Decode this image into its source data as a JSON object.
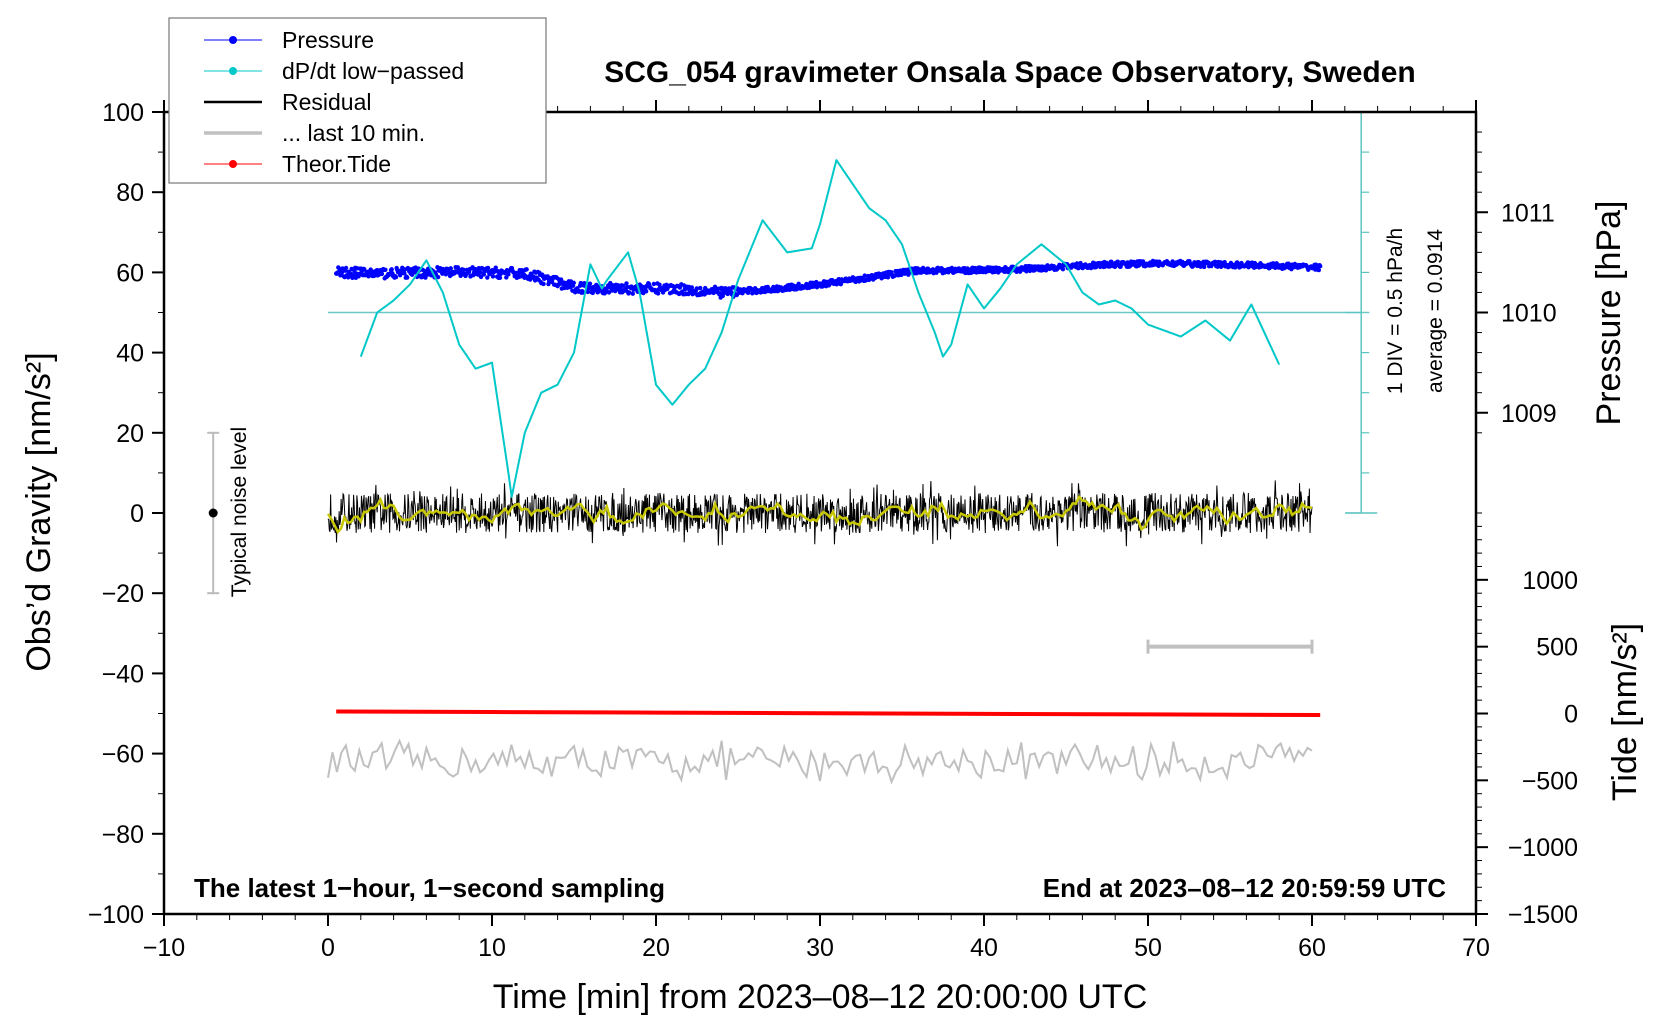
{
  "chart_data": {
    "type": "line",
    "title": "SCG_054 gravimeter Onsala Space Observatory, Sweden",
    "xlabel": "Time [min] from 2023–08–12 20:00:00 UTC",
    "ylabel": "Obs’d Gravity [nm/s²]",
    "ylabel_right_pressure": "Pressure [hPa]",
    "ylabel_right_tide": "Tide [nm/s²]",
    "xlim": [
      -10,
      70
    ],
    "ylim": [
      -100,
      100
    ],
    "xticks": [
      "−10",
      "0",
      "10",
      "20",
      "30",
      "40",
      "50",
      "60",
      "70"
    ],
    "yticks": [
      "−100",
      "−80",
      "−60",
      "−40",
      "−20",
      "0",
      "20",
      "40",
      "60",
      "80",
      "100"
    ],
    "pressure_ticks": [
      "1009",
      "1010",
      "1011"
    ],
    "tide_ticks": [
      "−1500",
      "−1000",
      "−500",
      "0",
      "500",
      "1000"
    ],
    "legend": {
      "placement": "top-left",
      "entries": [
        {
          "label": "Pressure",
          "color": "#0000ff",
          "marker": "dot"
        },
        {
          "label": "dP/dt low−passed",
          "color": "#00c8c8",
          "marker": "dot"
        },
        {
          "label": "Residual",
          "color": "#000000",
          "marker": "line"
        },
        {
          "label": "... last 10 min.",
          "color": "#c0c0c0",
          "marker": "line"
        },
        {
          "label": "Theor.Tide",
          "color": "#ff0000",
          "marker": "dot"
        }
      ]
    },
    "annotations": {
      "bottom_left": "The latest 1−hour, 1−second sampling",
      "bottom_right": "End at 2023–08–12 20:59:59 UTC",
      "dpdt_scale": "1 DIV = 0.5 hPa/h",
      "dpdt_average": "average = 0.0914",
      "noise_label": "Typical noise level"
    },
    "noise_level": {
      "x": -7,
      "center": 0,
      "range": [
        -20,
        20
      ]
    },
    "last10_scale_bar": {
      "x": [
        50,
        60
      ],
      "tide": 500
    },
    "series": [
      {
        "name": "Pressure",
        "unit": "hPa",
        "color": "#0000ff",
        "x": [
          0.5,
          3,
          6,
          9,
          12,
          15,
          18,
          21,
          24,
          27,
          30,
          33,
          36,
          39,
          42,
          45,
          48,
          51,
          54,
          57,
          60.5
        ],
        "y": [
          1010.4,
          1010.39,
          1010.4,
          1010.4,
          1010.39,
          1010.25,
          1010.24,
          1010.24,
          1010.2,
          1010.23,
          1010.28,
          1010.35,
          1010.42,
          1010.42,
          1010.43,
          1010.46,
          1010.48,
          1010.49,
          1010.48,
          1010.47,
          1010.45
        ]
      },
      {
        "name": "dP/dt low-passed",
        "unit": "gravity-plot units (1 DIV = 10)",
        "baseline": 50,
        "color": "#00c8c8",
        "x": [
          2,
          3,
          4,
          5,
          6,
          7,
          8,
          9,
          10,
          11,
          11.2,
          12,
          13,
          14,
          15,
          16,
          16.7,
          17,
          18.3,
          19,
          20,
          21,
          22,
          23,
          24,
          25,
          26.5,
          28,
          29.5,
          30,
          31,
          32,
          33,
          34,
          35,
          36,
          37,
          37.5,
          38,
          39,
          40,
          41,
          42,
          43.5,
          45,
          46,
          47,
          48,
          49,
          50,
          52,
          53.5,
          55,
          56.3,
          58
        ],
        "y": [
          39,
          50,
          53,
          57,
          63,
          55,
          42,
          36,
          37.5,
          10,
          4,
          20,
          30,
          32,
          40,
          62,
          56,
          58,
          65,
          55,
          32,
          27,
          32,
          36,
          45,
          58,
          73,
          65,
          66,
          72,
          88,
          82,
          76,
          73,
          67,
          55,
          45,
          39,
          42,
          57,
          51,
          56,
          62,
          67,
          62,
          55,
          52,
          53,
          51,
          47,
          44,
          48,
          43,
          52,
          37
        ]
      },
      {
        "name": "Residual",
        "color": "#000000",
        "smoothed_color": "#c8c800",
        "x_range": [
          0,
          60
        ],
        "mean": 0,
        "amplitude": 5
      },
      {
        "name": "... last 10 min.",
        "color": "#c0c0c0",
        "x_range": [
          0,
          60
        ],
        "mean": -62,
        "amplitude": 5
      },
      {
        "name": "Theor.Tide",
        "unit": "nm/s²",
        "color": "#ff0000",
        "x": [
          0.5,
          10,
          20,
          30,
          40,
          50,
          60.5
        ],
        "y": [
          15,
          11,
          7,
          2,
          -3,
          -7,
          -11
        ]
      }
    ]
  }
}
